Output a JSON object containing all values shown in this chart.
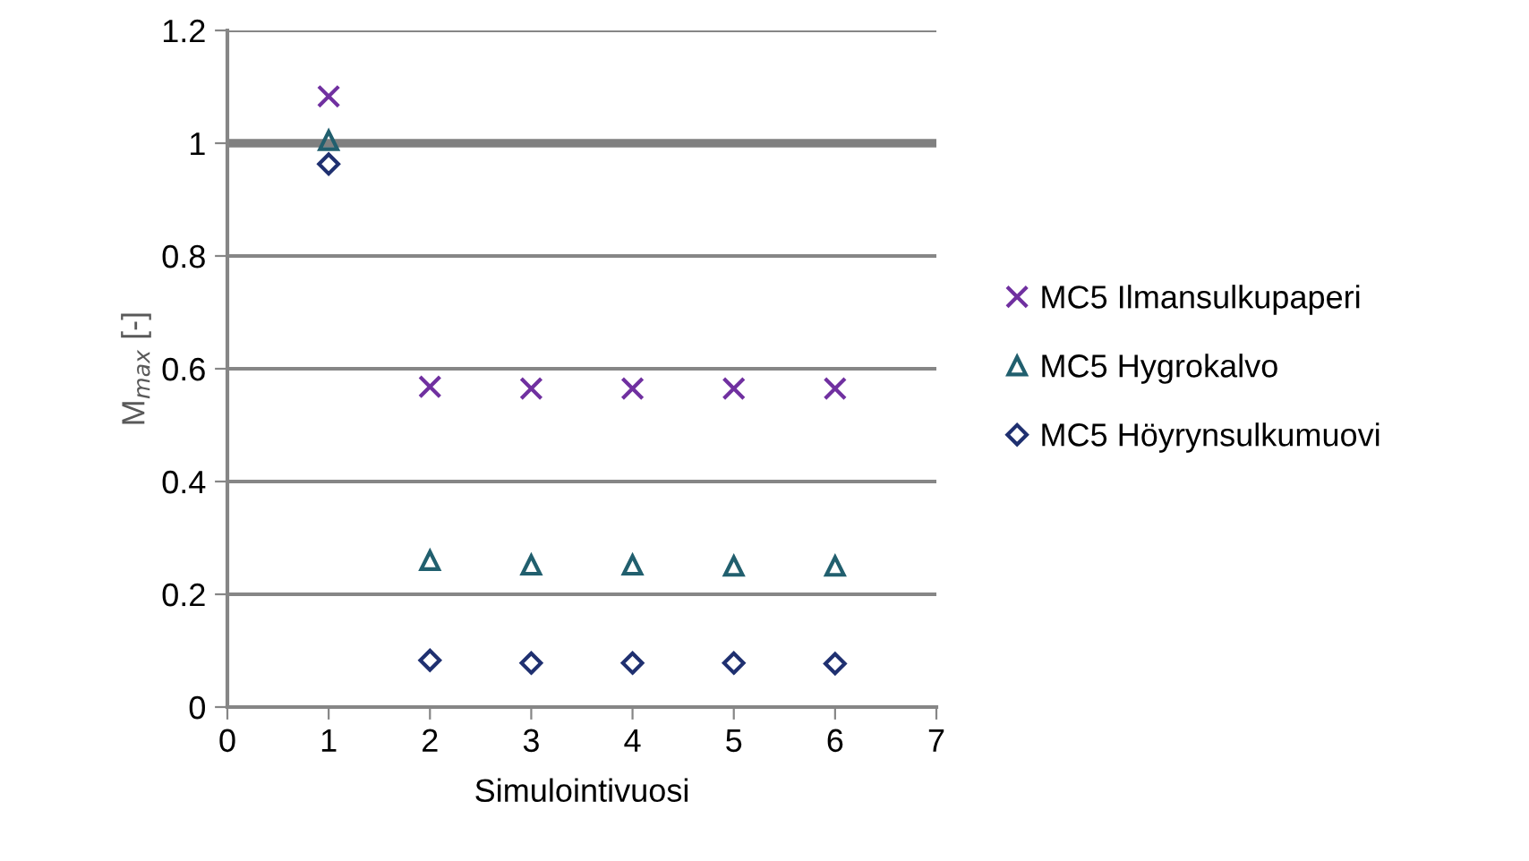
{
  "chart_data": {
    "type": "scatter",
    "xlabel": "Simulointivuosi",
    "ylabel": "M$_{max}$ [-]",
    "x": [
      1,
      2,
      3,
      4,
      5,
      6
    ],
    "series": [
      {
        "name": "MC5 Ilmansulkupaperi",
        "color": "#7030a0",
        "marker": "cross",
        "values": [
          1.083,
          0.568,
          0.565,
          0.565,
          0.565,
          0.565
        ]
      },
      {
        "name": "MC5 Hygrokalvo",
        "color": "#215f6e",
        "marker": "triangle",
        "values": [
          1.005,
          0.26,
          0.252,
          0.252,
          0.25,
          0.25
        ]
      },
      {
        "name": "MC5 Höyrynsulkumuovi",
        "color": "#1f3070",
        "marker": "diamond",
        "values": [
          0.963,
          0.083,
          0.078,
          0.078,
          0.078,
          0.077
        ]
      }
    ],
    "xlim": [
      0,
      7
    ],
    "xticks": [
      0,
      1,
      2,
      3,
      4,
      5,
      6,
      7
    ],
    "ylim": [
      0,
      1.2
    ],
    "yticks": [
      0,
      0.2,
      0.4,
      0.6,
      0.8,
      1,
      1.2
    ],
    "ref_lines": [
      {
        "axis": "y",
        "value": 1,
        "color": "#808080"
      }
    ],
    "grid": "y",
    "legend": "right"
  }
}
